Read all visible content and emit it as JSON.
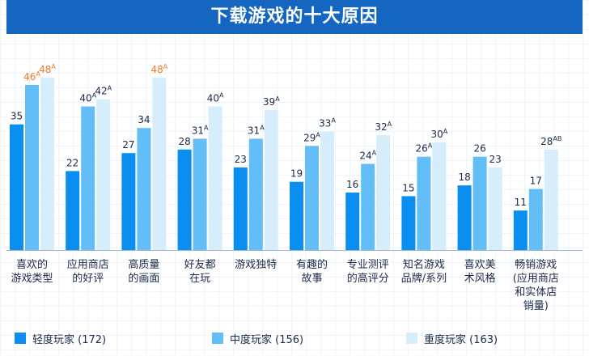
{
  "chart_data": {
    "type": "bar",
    "title": "下载游戏的十大原因",
    "categories": [
      [
        "喜欢的",
        "游戏类型"
      ],
      [
        "应用商店",
        "的好评"
      ],
      [
        "高质量",
        "的画面"
      ],
      [
        "好友都",
        "在玩"
      ],
      [
        "游戏独特"
      ],
      [
        "有趣的",
        "故事"
      ],
      [
        "专业测评",
        "的高评分"
      ],
      [
        "知名游戏",
        "品牌/系列"
      ],
      [
        "喜欢美",
        "术风格"
      ],
      [
        "畅销游戏",
        "(应用商店",
        "和实体店",
        "销量)"
      ]
    ],
    "series": [
      {
        "name": "轻度玩家 (172)",
        "color": "#0a8ff0",
        "values": [
          35,
          22,
          27,
          28,
          23,
          19,
          16,
          15,
          18,
          11
        ],
        "sup": [
          "",
          "",
          "",
          "",
          "",
          "",
          "",
          "",
          "",
          ""
        ]
      },
      {
        "name": "中度玩家 (156)",
        "color": "#63bdf7",
        "values": [
          46,
          40,
          34,
          31,
          31,
          29,
          24,
          26,
          26,
          17
        ],
        "sup": [
          "A",
          "A",
          "",
          "A",
          "A",
          "A",
          "A",
          "A",
          "",
          ""
        ]
      },
      {
        "name": "重度玩家 (163)",
        "color": "#d6edfc",
        "values": [
          48,
          42,
          48,
          40,
          39,
          33,
          32,
          30,
          23,
          28
        ],
        "sup": [
          "A",
          "A",
          "A",
          "A",
          "A",
          "A",
          "A",
          "A",
          "",
          "AB"
        ]
      }
    ],
    "highlight": [
      [
        0,
        1
      ],
      [
        0,
        2
      ],
      [
        2,
        2
      ]
    ],
    "highlight_color": "#f07a2a",
    "label_color": "#1b2a4a",
    "ylim": [
      0,
      55
    ],
    "legend": "bottom"
  }
}
